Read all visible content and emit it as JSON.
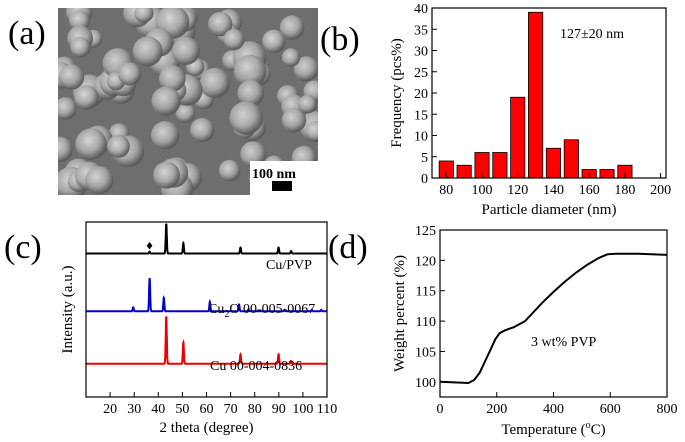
{
  "panels": {
    "a": {
      "label": "(a)",
      "scale_bar": "100 nm"
    },
    "b": {
      "label": "(b)"
    },
    "c": {
      "label": "(c)"
    },
    "d": {
      "label": "(d)"
    }
  },
  "colors": {
    "bar_fill": "#ff0000",
    "cu_pvp": "#000000",
    "cu2o": "#0000cc",
    "cu": "#ee0000"
  },
  "chart_data": [
    {
      "panel": "b",
      "type": "bar",
      "title": "",
      "xlabel": "Particle diameter (nm)",
      "ylabel": "Frequency (pcs%)",
      "annotation": "127±20 nm",
      "xlim": [
        72,
        203
      ],
      "ylim": [
        0,
        40
      ],
      "xticks": [
        80,
        100,
        120,
        140,
        160,
        180,
        200
      ],
      "yticks": [
        0,
        5,
        10,
        15,
        20,
        25,
        30,
        35,
        40
      ],
      "bin_width": 8,
      "x": [
        80,
        90,
        100,
        110,
        120,
        130,
        140,
        150,
        160,
        170,
        180
      ],
      "values": [
        4,
        3,
        6,
        6,
        19,
        39,
        7,
        9,
        2,
        2,
        3
      ]
    },
    {
      "panel": "c",
      "type": "line",
      "title": "",
      "xlabel": "2 theta (degree)",
      "ylabel": "Intensity (a.u.)",
      "xlim": [
        10,
        110
      ],
      "xticks": [
        20,
        30,
        40,
        50,
        60,
        70,
        80,
        90,
        100,
        110
      ],
      "marker_label": "♦",
      "marker_x": 36.4,
      "series": [
        {
          "name": "Cu/PVP",
          "color": "#000000",
          "baseline": 0.82,
          "scale": 0.17,
          "peaks": [
            [
              36.4,
              0.06
            ],
            [
              43.3,
              1.0
            ],
            [
              50.4,
              0.35
            ],
            [
              74.1,
              0.2
            ],
            [
              89.9,
              0.2
            ],
            [
              95.1,
              0.08
            ]
          ]
        },
        {
          "name_prefix": "Cu",
          "name_sub": "2",
          "name_suffix": "O 00-005-0067",
          "color": "#0000cc",
          "baseline": 0.49,
          "scale": 0.19,
          "peaks": [
            [
              29.6,
              0.12
            ],
            [
              36.4,
              1.0
            ],
            [
              42.3,
              0.4
            ],
            [
              61.4,
              0.28
            ],
            [
              73.5,
              0.2
            ],
            [
              77.4,
              0.05
            ],
            [
              92.4,
              0.04
            ],
            [
              103.6,
              0.04
            ],
            [
              107.6,
              0.04
            ]
          ]
        },
        {
          "name": "Cu 00-004-0836",
          "color": "#ee0000",
          "baseline": 0.19,
          "scale": 0.27,
          "peaks": [
            [
              43.3,
              1.0
            ],
            [
              50.4,
              0.45
            ],
            [
              74.1,
              0.2
            ],
            [
              89.9,
              0.2
            ],
            [
              95.1,
              0.06
            ]
          ]
        }
      ]
    },
    {
      "panel": "d",
      "type": "line",
      "title": "",
      "xlabel_prefix": "Temperature (",
      "xlabel_sup": "o",
      "xlabel_suffix": "C)",
      "ylabel": "Weight percent (%)",
      "annotation": "3 wt% PVP",
      "xlim": [
        0,
        800
      ],
      "ylim": [
        97.5,
        125
      ],
      "xticks": [
        0,
        200,
        400,
        600,
        800
      ],
      "yticks": [
        100,
        105,
        110,
        115,
        120,
        125
      ],
      "series": [
        {
          "name": "",
          "color": "#000000",
          "points": [
            [
              0,
              100.0
            ],
            [
              50,
              99.9
            ],
            [
              100,
              99.8
            ],
            [
              120,
              100.3
            ],
            [
              140,
              101.5
            ],
            [
              160,
              103.5
            ],
            [
              180,
              105.5
            ],
            [
              195,
              107.0
            ],
            [
              210,
              108.0
            ],
            [
              230,
              108.5
            ],
            [
              260,
              109.0
            ],
            [
              280,
              109.5
            ],
            [
              300,
              110.0
            ],
            [
              330,
              111.5
            ],
            [
              360,
              113.0
            ],
            [
              400,
              114.8
            ],
            [
              440,
              116.5
            ],
            [
              480,
              118.0
            ],
            [
              520,
              119.3
            ],
            [
              560,
              120.4
            ],
            [
              590,
              121.0
            ],
            [
              620,
              121.1
            ],
            [
              700,
              121.1
            ],
            [
              800,
              120.9
            ]
          ]
        }
      ]
    }
  ]
}
